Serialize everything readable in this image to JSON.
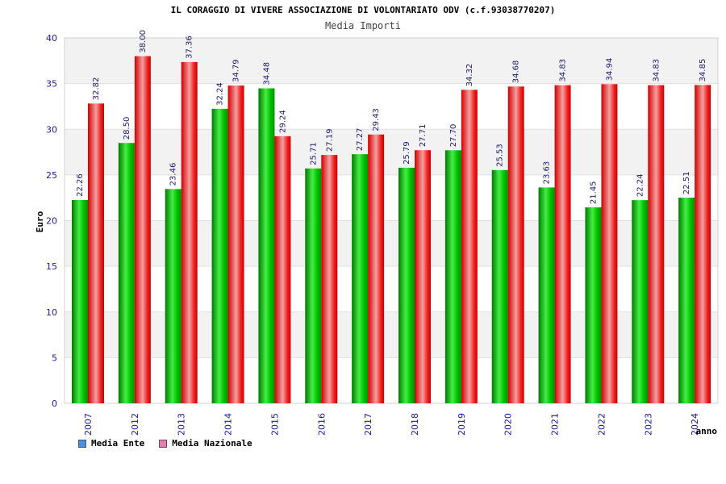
{
  "chart_data": {
    "type": "bar",
    "title": "IL CORAGGIO DI VIVERE ASSOCIAZIONE DI VOLONTARIATO ODV (c.f.93038770207)",
    "subtitle": "Media Importi",
    "ylabel": "Euro",
    "xlabel": "anno",
    "ylim": [
      0,
      40
    ],
    "yticks": [
      0,
      5,
      10,
      15,
      20,
      25,
      30,
      35,
      40
    ],
    "categories": [
      "2007",
      "2012",
      "2013",
      "2014",
      "2015",
      "2016",
      "2017",
      "2018",
      "2019",
      "2020",
      "2021",
      "2022",
      "2023",
      "2024"
    ],
    "series": [
      {
        "name": "Media Ente",
        "color": "#00cc00",
        "legend_color": "#4a90e2",
        "values": [
          22.26,
          28.5,
          23.46,
          32.24,
          34.48,
          25.71,
          27.27,
          25.79,
          27.7,
          25.53,
          23.63,
          21.45,
          22.24,
          22.51
        ],
        "labels": [
          "22.26",
          "28.50",
          "23.46",
          "32.24",
          "34.48",
          "25.71",
          "27.27",
          "25.79",
          "27.70",
          "25.53",
          "23.63",
          "21.45",
          "22.24",
          "22.51"
        ]
      },
      {
        "name": "Media Nazionale",
        "color": "#ee1111",
        "legend_color": "#e87cb0",
        "values": [
          32.82,
          38.0,
          37.36,
          34.79,
          29.24,
          27.19,
          29.43,
          27.71,
          34.32,
          34.68,
          34.83,
          34.94,
          34.83,
          34.85
        ],
        "labels": [
          "32.82",
          "38.00",
          "37.36",
          "34.79",
          "29.24",
          "27.19",
          "29.43",
          "27.71",
          "34.32",
          "34.68",
          "34.83",
          "34.94",
          "34.83",
          "34.85"
        ]
      }
    ],
    "grid": true,
    "legend_position": "bottom-left"
  }
}
